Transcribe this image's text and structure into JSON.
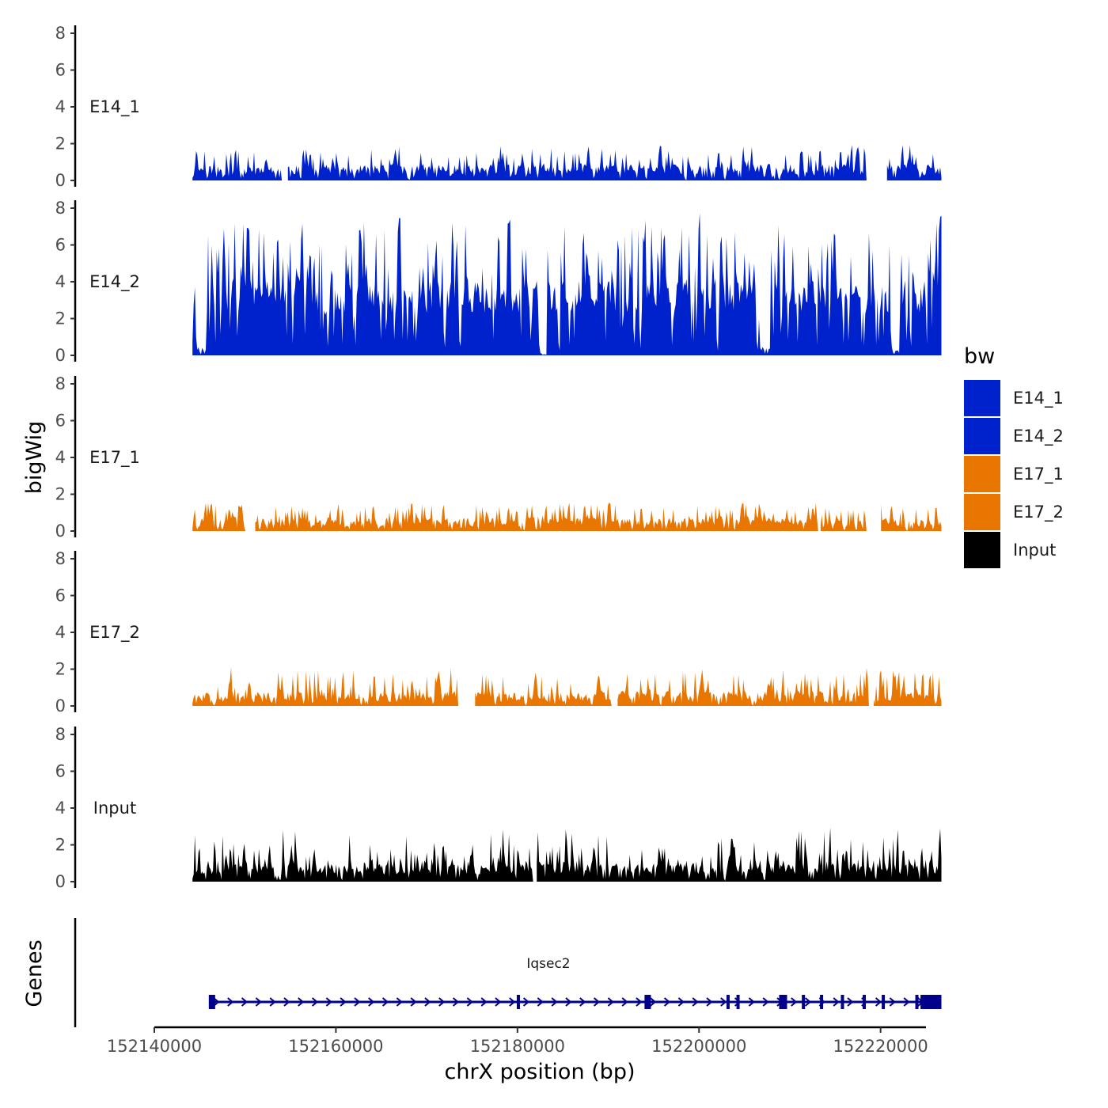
{
  "chart_data": {
    "type": "area",
    "ylabel": "bigWig",
    "xlabel": "chrX position (bp)",
    "ylim": [
      0,
      8
    ],
    "y_ticks": [
      "0",
      "2",
      "4",
      "6",
      "8"
    ],
    "xlim": [
      152140000,
      152225000
    ],
    "x_ticks": [
      {
        "value": 152140000,
        "label": "152140000"
      },
      {
        "value": 152160000,
        "label": "152160000"
      },
      {
        "value": 152180000,
        "label": "152180000"
      },
      {
        "value": 152200000,
        "label": "152200000"
      },
      {
        "value": 152220000,
        "label": "152220000"
      }
    ],
    "data_range": [
      152144200,
      152226700
    ],
    "series": [
      {
        "name": "E14_1",
        "color": "#0022CC",
        "baseline": 0.6,
        "spread": 0.5,
        "peak_max": 1.9,
        "seed": 11,
        "gaps": [
          [
            152154000,
            152154700
          ],
          [
            152218400,
            152220700
          ]
        ]
      },
      {
        "name": "E14_2",
        "color": "#0022CC",
        "baseline": 3.2,
        "spread": 1.6,
        "peak_max": 8.0,
        "seed": 23,
        "dips": [
          [
            152145200,
            0.6
          ],
          [
            152182800,
            0.1
          ],
          [
            152207200,
            0.5
          ],
          [
            152221600,
            0.3
          ]
        ]
      },
      {
        "name": "E17_1",
        "color": "#E87600",
        "baseline": 0.5,
        "spread": 0.4,
        "peak_max": 1.6,
        "seed": 37,
        "gaps": [
          [
            152150000,
            152151000
          ],
          [
            152218400,
            152220000
          ],
          [
            152213000,
            152213300
          ]
        ]
      },
      {
        "name": "E17_2",
        "color": "#E87600",
        "baseline": 0.5,
        "spread": 0.5,
        "peak_max": 2.4,
        "seed": 51,
        "gaps": [
          [
            152173400,
            152175300
          ],
          [
            152190300,
            152191000
          ],
          [
            152218600,
            152219200
          ]
        ]
      },
      {
        "name": "Input",
        "color": "#000000",
        "baseline": 0.7,
        "spread": 0.5,
        "peak_max": 3.3,
        "seed": 67,
        "gaps": [
          [
            152181600,
            152182000
          ]
        ]
      }
    ],
    "genes": {
      "track_label": "Genes",
      "name": "Iqsec2",
      "color": "#00008B",
      "start": 152146100,
      "end": 152226700,
      "exons": [
        152146200,
        152180100,
        152194300,
        152203200,
        152204300,
        152209000,
        152211500,
        152213500,
        152215800,
        152218200,
        152220300,
        152224000
      ],
      "big_exons": [
        [
          152146000,
          152146700
        ],
        [
          152194000,
          152194700
        ],
        [
          152209000,
          152209700
        ],
        [
          152224400,
          152226700
        ]
      ]
    },
    "legend": {
      "title": "bw",
      "position": "right",
      "items": [
        {
          "label": "E14_1",
          "color": "#0022CC"
        },
        {
          "label": "E14_2",
          "color": "#0022CC"
        },
        {
          "label": "E17_1",
          "color": "#E87600"
        },
        {
          "label": "E17_2",
          "color": "#E87600"
        },
        {
          "label": "Input",
          "color": "#000000"
        }
      ]
    }
  }
}
